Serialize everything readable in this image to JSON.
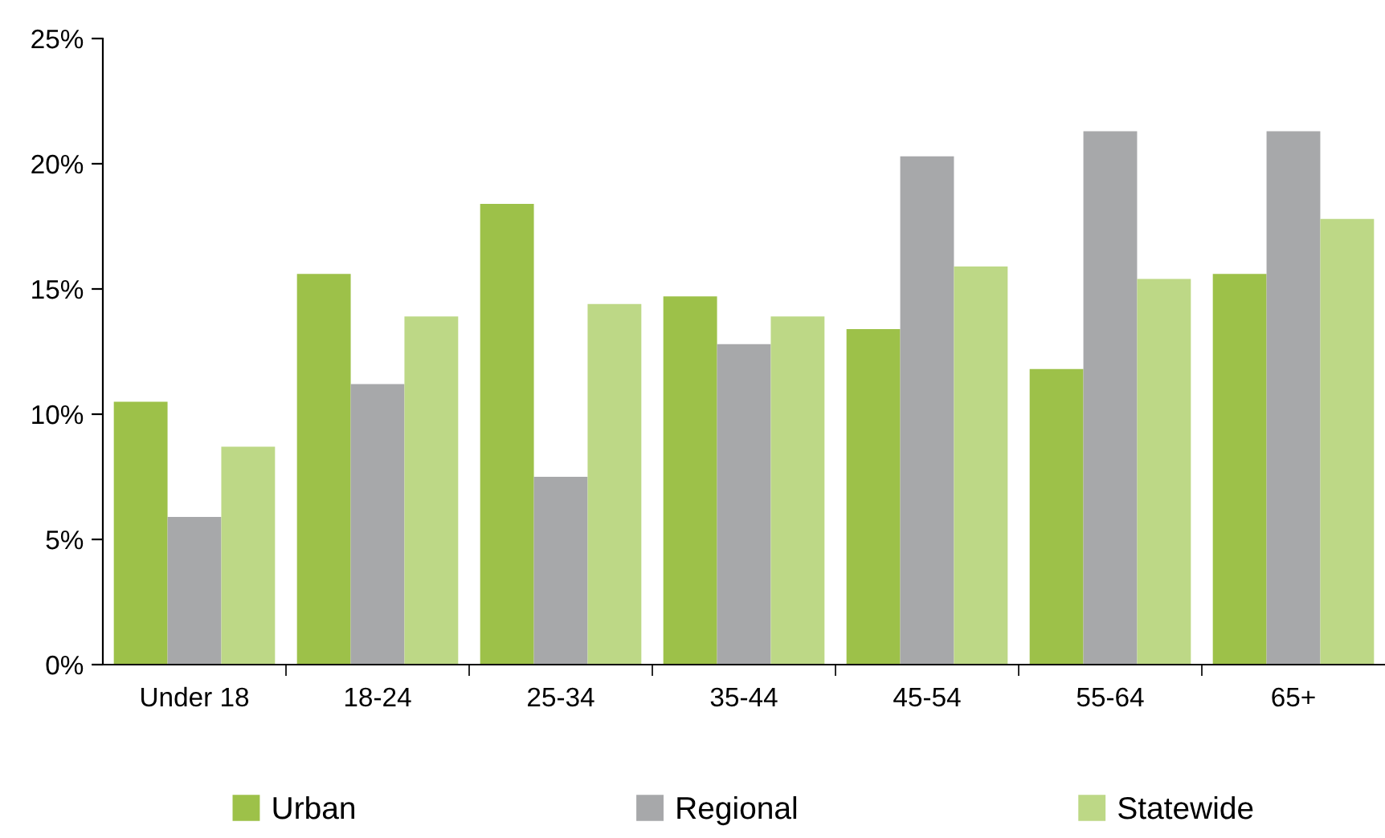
{
  "chart_data": {
    "type": "bar",
    "categories": [
      "Under 18",
      "18-24",
      "25-34",
      "35-44",
      "45-54",
      "55-64",
      "65+"
    ],
    "series": [
      {
        "name": "Urban",
        "color": "#9dc149",
        "values": [
          10.5,
          15.6,
          18.4,
          14.7,
          13.4,
          11.8,
          15.6
        ]
      },
      {
        "name": "Regional",
        "color": "#a7a8aa",
        "values": [
          5.9,
          11.2,
          7.5,
          12.8,
          20.3,
          21.3,
          21.3
        ]
      },
      {
        "name": "Statewide",
        "color": "#bdd886",
        "values": [
          8.7,
          13.9,
          14.4,
          13.9,
          15.9,
          15.4,
          17.8
        ]
      }
    ],
    "ylim": [
      0,
      25
    ],
    "yticks": [
      {
        "value": 0,
        "label": "0%"
      },
      {
        "value": 5,
        "label": "5%"
      },
      {
        "value": 10,
        "label": "10%"
      },
      {
        "value": 15,
        "label": "15%"
      },
      {
        "value": 20,
        "label": "20%"
      },
      {
        "value": 25,
        "label": "25%"
      }
    ],
    "grid": false,
    "legend": "bottom"
  }
}
